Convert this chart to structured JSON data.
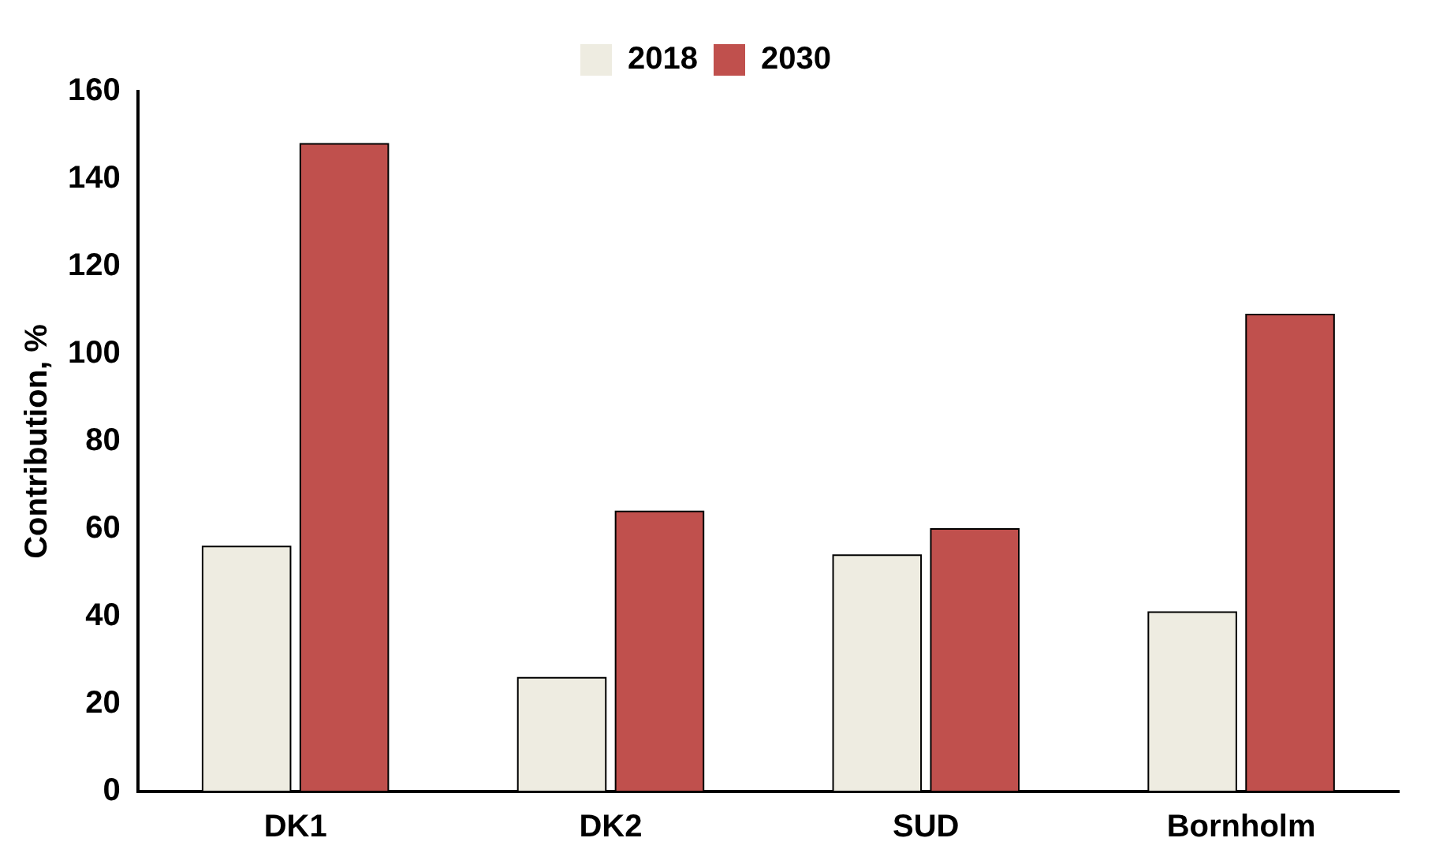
{
  "chart_data": {
    "type": "bar",
    "ylabel": "Contribution, %",
    "categories": [
      "DK1",
      "DK2",
      "SUD",
      "Bornholm"
    ],
    "series": [
      {
        "name": "2018",
        "color": "#eeece1",
        "values": [
          56,
          26,
          54,
          41
        ]
      },
      {
        "name": "2030",
        "color": "#c0504d",
        "values": [
          148,
          64,
          60,
          109
        ]
      }
    ],
    "ylim": [
      0,
      160
    ],
    "yticks": [
      0,
      20,
      40,
      60,
      80,
      100,
      120,
      140,
      160
    ],
    "grid": false,
    "legend": "top"
  }
}
